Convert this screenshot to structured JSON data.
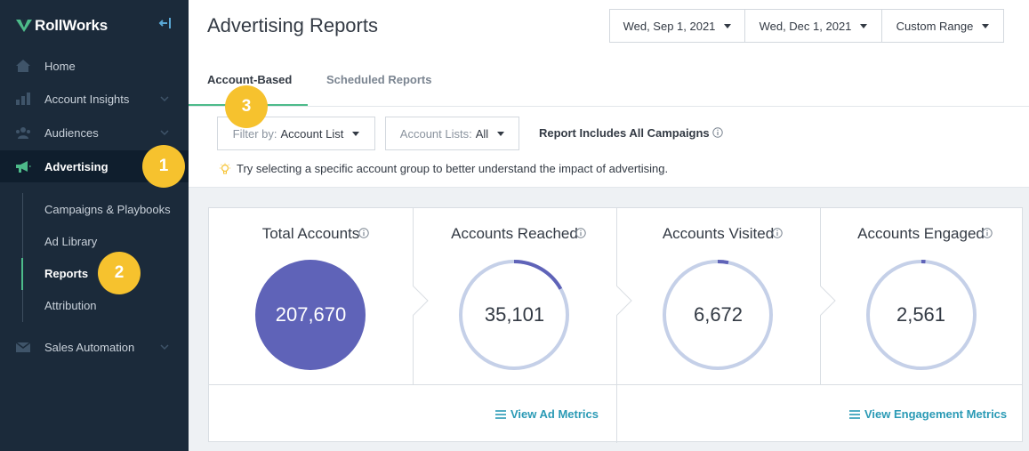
{
  "brand": {
    "name": "RollWorks",
    "accent": "#4dbb8a"
  },
  "sidebar": {
    "items": [
      {
        "label": "Home",
        "icon": "home-icon",
        "expandable": false
      },
      {
        "label": "Account Insights",
        "icon": "insights-icon",
        "expandable": true
      },
      {
        "label": "Audiences",
        "icon": "audiences-icon",
        "expandable": true
      },
      {
        "label": "Advertising",
        "icon": "megaphone-icon",
        "expandable": false,
        "active": true
      },
      {
        "label": "Sales Automation",
        "icon": "mail-icon",
        "expandable": true
      }
    ],
    "subitems": [
      {
        "label": "Campaigns & Playbooks"
      },
      {
        "label": "Ad Library"
      },
      {
        "label": "Reports",
        "active": true
      },
      {
        "label": "Attribution"
      }
    ]
  },
  "badges": [
    "1",
    "2",
    "3"
  ],
  "header": {
    "title": "Advertising Reports",
    "start_date": "Wed, Sep 1, 2021",
    "end_date": "Wed, Dec 1, 2021",
    "range": "Custom Range"
  },
  "tabs": [
    {
      "label": "Account-Based",
      "active": true
    },
    {
      "label": "Scheduled Reports",
      "active": false
    }
  ],
  "filters": {
    "filter_by_label": "Filter by:",
    "filter_by_value": "Account List",
    "account_lists_label": "Account Lists:",
    "account_lists_value": "All",
    "report_label": "Report Includes All Campaigns",
    "tip": "Try selecting a specific account group to better understand the impact of advertising."
  },
  "metrics": [
    {
      "title": "Total Accounts",
      "value": "207,670",
      "fraction": 1.0
    },
    {
      "title": "Accounts Reached",
      "value": "35,101",
      "fraction": 0.169
    },
    {
      "title": "Accounts Visited",
      "value": "6,672",
      "fraction": 0.032
    },
    {
      "title": "Accounts Engaged",
      "value": "2,561",
      "fraction": 0.012
    }
  ],
  "links": {
    "ad_metrics": "View Ad Metrics",
    "engagement_metrics": "View Engagement Metrics"
  },
  "colors": {
    "sidebar_bg": "#1b2a3a",
    "badge": "#f6c22e",
    "ring_track": "#c5d0e8",
    "ring_fill": "#5f63b8",
    "link": "#2a9ab5"
  }
}
